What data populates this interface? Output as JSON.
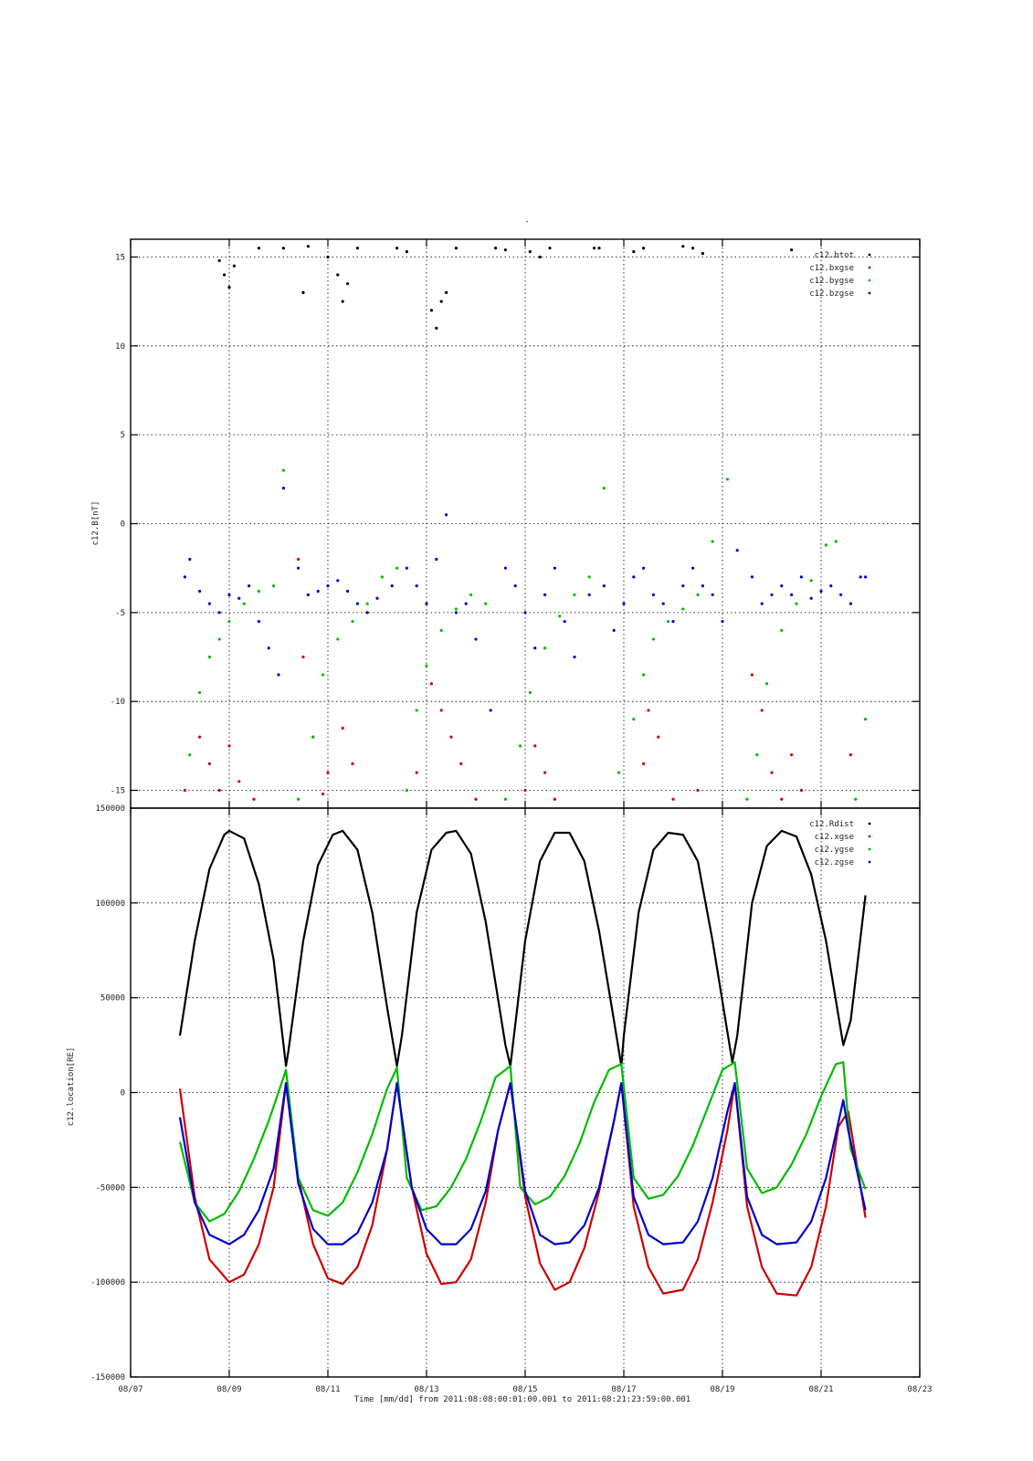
{
  "figure": {
    "top_caption": "-",
    "time_label": "Time [mm/dd]  from 2011:08:08:00:01:00.001  to  2011:08:21:23:59:00.001"
  },
  "chart_data": [
    {
      "type": "scatter",
      "ylabel": "c12.B[nT]",
      "ylim": [
        -16,
        16
      ],
      "yticks": [
        -15,
        -10,
        -5,
        0,
        5,
        10,
        15
      ],
      "xticks": [
        "08/07",
        "08/09",
        "08/11",
        "08/13",
        "08/15",
        "08/17",
        "08/19",
        "08/21",
        "08/23"
      ],
      "x_range_days": [
        "2011-08-07",
        "2011-08-23"
      ],
      "grid": true,
      "legend_position": "top-right",
      "series": [
        {
          "name": "c12.btot",
          "color": "#000000",
          "x": [
            8.8,
            8.9,
            9.0,
            9.1,
            9.6,
            10.1,
            10.5,
            10.6,
            11.0,
            11.2,
            11.3,
            11.4,
            11.6,
            12.4,
            12.6,
            13.1,
            13.2,
            13.3,
            13.4,
            13.6,
            14.4,
            14.6,
            15.1,
            15.3,
            15.5,
            16.4,
            16.5,
            17.2,
            17.4,
            18.2,
            18.4,
            18.6,
            20.4
          ],
          "y": [
            14.8,
            14.0,
            13.3,
            14.5,
            15.5,
            15.5,
            13.0,
            15.6,
            15.0,
            14.0,
            12.5,
            13.5,
            15.5,
            15.5,
            15.3,
            12.0,
            11.0,
            12.5,
            13.0,
            15.5,
            15.5,
            15.4,
            15.3,
            15.0,
            15.5,
            15.5,
            15.5,
            15.3,
            15.5,
            15.6,
            15.5,
            15.2,
            15.4
          ]
        },
        {
          "name": "c12.bxgse",
          "color": "#cc0000",
          "x": [
            8.1,
            8.4,
            8.6,
            8.8,
            9.0,
            9.2,
            9.5,
            10.4,
            10.5,
            10.7,
            10.9,
            11.0,
            11.3,
            11.5,
            12.8,
            13.1,
            13.3,
            13.5,
            13.7,
            14.0,
            15.0,
            15.2,
            15.4,
            15.6,
            17.4,
            17.5,
            17.7,
            18.0,
            18.5,
            19.6,
            19.8,
            20.0,
            20.2,
            20.4,
            20.6,
            21.6
          ],
          "y": [
            -15.0,
            -12.0,
            -13.5,
            -15.0,
            -12.5,
            -14.5,
            -15.5,
            -2.0,
            -7.5,
            -12.0,
            -15.2,
            -14.0,
            -11.5,
            -13.5,
            -14.0,
            -9.0,
            -10.5,
            -12.0,
            -13.5,
            -15.5,
            -15.0,
            -12.5,
            -14.0,
            -15.5,
            -13.5,
            -10.5,
            -12.0,
            -15.5,
            -15.0,
            -8.5,
            -10.5,
            -14.0,
            -15.5,
            -13.0,
            -15.0,
            -13.0
          ]
        },
        {
          "name": "c12.bygse",
          "color": "#00bb00",
          "x": [
            8.2,
            8.4,
            8.6,
            8.8,
            9.0,
            9.3,
            9.6,
            9.9,
            10.1,
            10.4,
            10.7,
            10.9,
            11.2,
            11.5,
            11.8,
            12.1,
            12.4,
            12.6,
            12.8,
            13.0,
            13.3,
            13.6,
            13.9,
            14.2,
            14.6,
            14.9,
            15.1,
            15.4,
            15.7,
            16.0,
            16.3,
            16.6,
            16.9,
            17.2,
            17.4,
            17.6,
            17.9,
            18.2,
            18.5,
            18.8,
            19.1,
            19.5,
            19.7,
            19.9,
            20.2,
            20.5,
            20.8,
            21.1,
            21.3,
            21.7,
            21.9
          ],
          "y": [
            -13.0,
            -9.5,
            -7.5,
            -6.5,
            -5.5,
            -4.5,
            -3.8,
            -3.5,
            3.0,
            -15.5,
            -12.0,
            -8.5,
            -6.5,
            -5.5,
            -4.5,
            -3.0,
            -2.5,
            -15.0,
            -10.5,
            -8.0,
            -6.0,
            -4.8,
            -4.0,
            -4.5,
            -15.5,
            -12.5,
            -9.5,
            -7.0,
            -5.2,
            -4.0,
            -3.0,
            2.0,
            -14.0,
            -11.0,
            -8.5,
            -6.5,
            -5.5,
            -4.8,
            -4.0,
            -1.0,
            2.5,
            -15.5,
            -13.0,
            -9.0,
            -6.0,
            -4.5,
            -3.2,
            -1.2,
            -1.0,
            -15.5,
            -11.0
          ]
        },
        {
          "name": "c12.bzgse",
          "color": "#0000cc",
          "x": [
            8.1,
            8.2,
            8.4,
            8.6,
            8.8,
            9.0,
            9.2,
            9.4,
            9.6,
            9.8,
            10.0,
            10.1,
            10.4,
            10.6,
            10.8,
            11.0,
            11.2,
            11.4,
            11.6,
            11.8,
            12.0,
            12.3,
            12.6,
            12.8,
            13.0,
            13.2,
            13.4,
            13.6,
            13.8,
            14.0,
            14.3,
            14.6,
            14.8,
            15.0,
            15.2,
            15.4,
            15.6,
            15.8,
            16.0,
            16.3,
            16.6,
            16.8,
            17.0,
            17.2,
            17.4,
            17.6,
            17.8,
            18.0,
            18.2,
            18.4,
            18.6,
            18.8,
            19.0,
            19.3,
            19.6,
            19.8,
            20.0,
            20.2,
            20.4,
            20.6,
            20.8,
            21.0,
            21.2,
            21.4,
            21.6,
            21.8,
            21.9
          ],
          "y": [
            -3.0,
            -2.0,
            -3.8,
            -4.5,
            -5.0,
            -4.0,
            -4.2,
            -3.5,
            -5.5,
            -7.0,
            -8.5,
            2.0,
            -2.5,
            -4.0,
            -3.8,
            -3.5,
            -3.2,
            -3.8,
            -4.5,
            -5.0,
            -4.2,
            -3.5,
            -2.5,
            -3.5,
            -4.5,
            -2.0,
            0.5,
            -5.0,
            -4.5,
            -6.5,
            -10.5,
            -2.5,
            -3.5,
            -5.0,
            -7.0,
            -4.0,
            -2.5,
            -5.5,
            -7.5,
            -4.0,
            -3.5,
            -6.0,
            -4.5,
            -3.0,
            -2.5,
            -4.0,
            -4.5,
            -5.5,
            -3.5,
            -2.5,
            -3.5,
            -4.0,
            -5.5,
            -1.5,
            -3.0,
            -4.5,
            -4.0,
            -3.5,
            -4.0,
            -3.0,
            -4.2,
            -3.8,
            -3.5,
            -4.0,
            -4.5,
            -3.0,
            -3.0
          ]
        }
      ]
    },
    {
      "type": "line",
      "ylabel": "c12.location[RE]",
      "ylim": [
        -150000,
        150000
      ],
      "yticks": [
        -150000,
        -100000,
        -50000,
        0,
        50000,
        100000,
        150000
      ],
      "xticks": [
        "08/07",
        "08/09",
        "08/11",
        "08/13",
        "08/15",
        "08/17",
        "08/19",
        "08/21",
        "08/23"
      ],
      "x_range_days": [
        "2011-08-07",
        "2011-08-23"
      ],
      "grid": true,
      "legend_position": "top-right",
      "series": [
        {
          "name": "c12.Rdist",
          "color": "#000000",
          "x": [
            8.0,
            8.3,
            8.6,
            8.9,
            9.0,
            9.3,
            9.6,
            9.9,
            10.15,
            10.2,
            10.5,
            10.8,
            11.1,
            11.3,
            11.6,
            11.9,
            12.2,
            12.4,
            12.5,
            12.8,
            13.1,
            13.4,
            13.6,
            13.9,
            14.2,
            14.6,
            14.7,
            15.0,
            15.3,
            15.6,
            15.9,
            16.2,
            16.5,
            16.8,
            16.95,
            17.0,
            17.3,
            17.6,
            17.9,
            18.2,
            18.5,
            18.8,
            19.2,
            19.3,
            19.6,
            19.9,
            20.2,
            20.5,
            20.8,
            21.1,
            21.45,
            21.6,
            21.9
          ],
          "y": [
            30000,
            80000,
            118000,
            136000,
            138000,
            134000,
            110000,
            70000,
            14000,
            22000,
            80000,
            120000,
            136000,
            138000,
            128000,
            95000,
            45000,
            14000,
            30000,
            95000,
            128000,
            137000,
            138000,
            126000,
            90000,
            25000,
            14000,
            80000,
            122000,
            137000,
            137000,
            122000,
            85000,
            38000,
            14000,
            30000,
            95000,
            128000,
            137000,
            136000,
            122000,
            80000,
            16000,
            30000,
            100000,
            130000,
            138000,
            135000,
            115000,
            80000,
            25000,
            38000,
            104000
          ]
        },
        {
          "name": "c12.xgse",
          "color": "#cc0000",
          "x": [
            8.0,
            8.3,
            8.6,
            9.0,
            9.3,
            9.6,
            9.9,
            10.15,
            10.4,
            10.7,
            11.0,
            11.3,
            11.6,
            11.9,
            12.2,
            12.4,
            12.7,
            13.0,
            13.3,
            13.6,
            13.9,
            14.2,
            14.45,
            14.7,
            15.0,
            15.3,
            15.6,
            15.9,
            16.2,
            16.5,
            16.8,
            16.95,
            17.2,
            17.5,
            17.8,
            18.2,
            18.5,
            18.8,
            19.1,
            19.25,
            19.5,
            19.8,
            20.1,
            20.5,
            20.8,
            21.1,
            21.35,
            21.55,
            21.9
          ],
          "y": [
            2000,
            -55000,
            -88000,
            -100000,
            -96000,
            -80000,
            -50000,
            5000,
            -45000,
            -80000,
            -98000,
            -101000,
            -92000,
            -70000,
            -30000,
            5000,
            -50000,
            -85000,
            -101000,
            -100000,
            -88000,
            -58000,
            -20000,
            5000,
            -55000,
            -90000,
            -104000,
            -100000,
            -82000,
            -52000,
            -15000,
            5000,
            -60000,
            -92000,
            -106000,
            -104000,
            -88000,
            -58000,
            -20000,
            5000,
            -60000,
            -92000,
            -106000,
            -107000,
            -92000,
            -60000,
            -18000,
            -10000,
            -66000
          ]
        },
        {
          "name": "c12.ygse",
          "color": "#00bb00",
          "x": [
            8.0,
            8.3,
            8.6,
            8.9,
            9.2,
            9.5,
            9.8,
            10.1,
            10.15,
            10.4,
            10.7,
            11.0,
            11.3,
            11.6,
            11.9,
            12.2,
            12.4,
            12.6,
            12.9,
            13.2,
            13.5,
            13.8,
            14.1,
            14.4,
            14.7,
            14.9,
            15.2,
            15.5,
            15.8,
            16.1,
            16.4,
            16.7,
            16.95,
            17.2,
            17.5,
            17.8,
            18.1,
            18.4,
            18.7,
            19.0,
            19.25,
            19.5,
            19.8,
            20.1,
            20.4,
            20.7,
            21.0,
            21.3,
            21.45,
            21.6,
            21.9
          ],
          "y": [
            -26000,
            -58000,
            -68000,
            -64000,
            -52000,
            -35000,
            -15000,
            8000,
            12000,
            -45000,
            -62000,
            -65000,
            -58000,
            -42000,
            -22000,
            2000,
            13000,
            -45000,
            -62000,
            -60000,
            -50000,
            -35000,
            -15000,
            8000,
            14000,
            -50000,
            -59000,
            -55000,
            -44000,
            -27000,
            -5000,
            12000,
            15000,
            -45000,
            -56000,
            -54000,
            -44000,
            -28000,
            -8000,
            12000,
            16000,
            -40000,
            -53000,
            -50000,
            -38000,
            -22000,
            -2000,
            15000,
            16000,
            -30000,
            -51000
          ]
        },
        {
          "name": "c12.zgse",
          "color": "#0000cc",
          "x": [
            8.0,
            8.3,
            8.6,
            9.0,
            9.3,
            9.6,
            9.9,
            10.15,
            10.4,
            10.7,
            11.0,
            11.3,
            11.6,
            11.9,
            12.2,
            12.4,
            12.7,
            13.0,
            13.3,
            13.6,
            13.9,
            14.2,
            14.45,
            14.7,
            15.0,
            15.3,
            15.6,
            15.9,
            16.2,
            16.5,
            16.8,
            16.95,
            17.2,
            17.5,
            17.8,
            18.2,
            18.5,
            18.8,
            19.1,
            19.25,
            19.5,
            19.8,
            20.1,
            20.5,
            20.8,
            21.1,
            21.45,
            21.55,
            21.9
          ],
          "y": [
            -13000,
            -58000,
            -75000,
            -80000,
            -75000,
            -62000,
            -40000,
            5000,
            -48000,
            -72000,
            -80000,
            -80000,
            -74000,
            -58000,
            -30000,
            5000,
            -50000,
            -72000,
            -80000,
            -80000,
            -72000,
            -52000,
            -20000,
            5000,
            -52000,
            -75000,
            -80000,
            -79000,
            -70000,
            -50000,
            -15000,
            5000,
            -55000,
            -75000,
            -80000,
            -79000,
            -68000,
            -45000,
            -10000,
            5000,
            -55000,
            -75000,
            -80000,
            -79000,
            -68000,
            -45000,
            -4000,
            -20000,
            -62000
          ]
        }
      ]
    }
  ],
  "legend_marker": "·"
}
